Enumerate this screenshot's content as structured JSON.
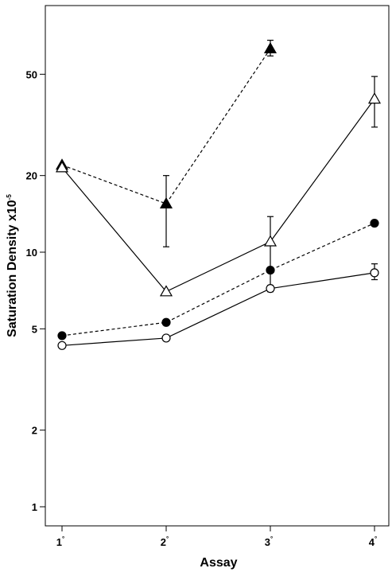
{
  "chart_data": {
    "type": "line",
    "xlabel": "Assay",
    "ylabel": "Saturation Density x10",
    "ylabel_exponent": "-5",
    "y_scale": "log",
    "ylim": [
      0.85,
      85
    ],
    "x_ticks": [
      {
        "base": "1",
        "sup": "°"
      },
      {
        "base": "2",
        "sup": "°"
      },
      {
        "base": "3",
        "sup": "°"
      },
      {
        "base": "4",
        "sup": "°"
      }
    ],
    "y_ticks": [
      1,
      2,
      5,
      10,
      20,
      50
    ],
    "y_tick_labels": [
      "1",
      "2",
      "5",
      "10",
      "20",
      "50"
    ],
    "grid": false,
    "series": [
      {
        "marker": "filled-triangle",
        "line": "dashed",
        "x": [
          1,
          2,
          3
        ],
        "y": [
          22,
          15.5,
          63
        ],
        "err_low": [
          null,
          10.5,
          59
        ],
        "err_high": [
          null,
          20,
          68
        ]
      },
      {
        "marker": "open-triangle",
        "line": "solid",
        "x": [
          1,
          2,
          3,
          4
        ],
        "y": [
          21.5,
          7,
          11,
          40
        ],
        "err_low": [
          null,
          null,
          7,
          31
        ],
        "err_high": [
          null,
          null,
          13.8,
          49
        ]
      },
      {
        "marker": "filled-circle",
        "line": "dashed",
        "x": [
          1,
          2,
          3,
          4
        ],
        "y": [
          4.7,
          5.3,
          8.5,
          13
        ],
        "err_low": [
          null,
          null,
          null,
          null
        ],
        "err_high": [
          null,
          null,
          null,
          null
        ]
      },
      {
        "marker": "open-circle",
        "line": "solid",
        "x": [
          1,
          2,
          3,
          4
        ],
        "y": [
          4.3,
          4.6,
          7.2,
          8.3
        ],
        "err_low": [
          null,
          null,
          7.0,
          7.8
        ],
        "err_high": [
          null,
          null,
          7.4,
          9.0
        ]
      }
    ]
  }
}
